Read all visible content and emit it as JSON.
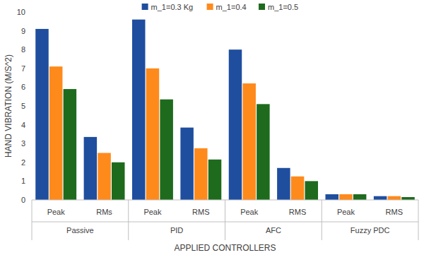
{
  "chart_data": {
    "type": "bar",
    "xlabel": "APPLIED CONTROLLERS",
    "ylabel": "HAND VIBRATION (M/S^2)",
    "categories": [
      "Peak",
      "RMs",
      "Peak",
      "RMS",
      "Peak",
      "RMS",
      "Peak",
      "RMS"
    ],
    "groups": [
      "Passive",
      "PID",
      "AFC",
      "Fuzzy PDC"
    ],
    "series": [
      {
        "name": "m_1=0.3 Kg",
        "color": "#1f4e9f",
        "values": [
          9.1,
          3.35,
          9.6,
          3.85,
          8.0,
          1.7,
          0.3,
          0.2
        ]
      },
      {
        "name": "m_1=0.4",
        "color": "#ff8a1c",
        "values": [
          7.1,
          2.5,
          7.0,
          2.75,
          6.2,
          1.25,
          0.3,
          0.2
        ]
      },
      {
        "name": "m_1=0.5",
        "color": "#1e6b1e",
        "values": [
          5.9,
          2.0,
          5.35,
          2.15,
          5.1,
          1.0,
          0.3,
          0.15
        ]
      }
    ],
    "ylim": [
      0,
      10
    ],
    "yticks": [
      0,
      1,
      2,
      3,
      4,
      5,
      6,
      7,
      8,
      9,
      10
    ],
    "grid": false,
    "legend": "top"
  }
}
